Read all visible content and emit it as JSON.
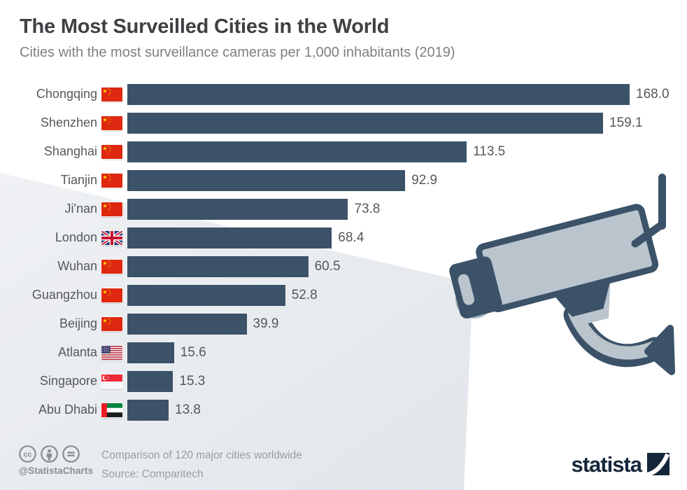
{
  "header": {
    "title": "The Most Surveilled Cities in the World",
    "subtitle": "Cities with the most surveillance cameras per 1,000 inhabitants (2019)"
  },
  "chart_data": {
    "type": "bar",
    "orientation": "horizontal",
    "title": "The Most Surveilled Cities in the World",
    "unit_label": "surveillance cameras per 1,000 inhabitants",
    "year": "2019",
    "xlim": [
      0,
      172
    ],
    "grid": false,
    "legend": false,
    "bar_color": "#3b5269",
    "categories": [
      "Chongqing",
      "Shenzhen",
      "Shanghai",
      "Tianjin",
      "Ji'nan",
      "London",
      "Wuhan",
      "Guangzhou",
      "Beijing",
      "Atlanta",
      "Singapore",
      "Abu Dhabi"
    ],
    "values": [
      168.0,
      159.1,
      113.5,
      92.9,
      73.8,
      68.4,
      60.5,
      52.8,
      39.9,
      15.6,
      15.3,
      13.8
    ],
    "countries": [
      "China",
      "China",
      "China",
      "China",
      "China",
      "United Kingdom",
      "China",
      "China",
      "China",
      "United States",
      "Singapore",
      "United Arab Emirates"
    ],
    "flag_icons": [
      "flag-china-icon",
      "flag-china-icon",
      "flag-china-icon",
      "flag-china-icon",
      "flag-china-icon",
      "flag-uk-icon",
      "flag-china-icon",
      "flag-china-icon",
      "flag-china-icon",
      "flag-usa-icon",
      "flag-singapore-icon",
      "flag-uae-icon"
    ]
  },
  "footer": {
    "license_icons": [
      "creative-commons-icon",
      "attribution-icon",
      "equals-icon"
    ],
    "handle": "@StatistaCharts",
    "note": "Comparison of 120 major cities worldwide",
    "source": "Source: Comparitech",
    "brand": "statista"
  },
  "illustration": {
    "name": "surveillance-camera",
    "beam_color_start": "#eff1f4",
    "beam_color_end": "#e3e7eb",
    "camera_body_color": "#b9c4cc",
    "camera_outline_color": "#3b5269"
  }
}
